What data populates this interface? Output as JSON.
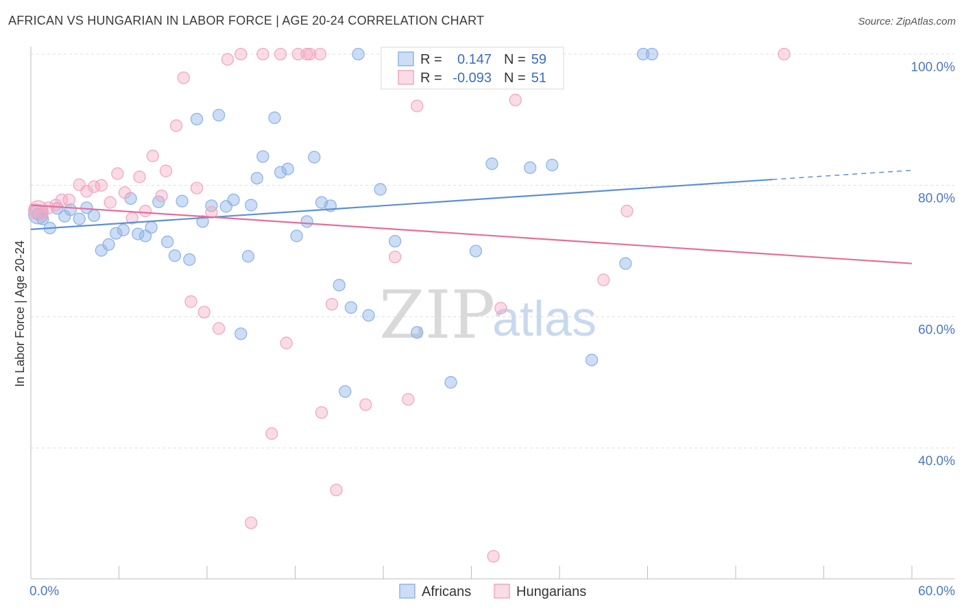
{
  "header": {
    "title": "AFRICAN VS HUNGARIAN IN LABOR FORCE | AGE 20-24 CORRELATION CHART",
    "source": "Source: ZipAtlas.com"
  },
  "watermark": {
    "zip": "ZIP",
    "atlas": "atlas"
  },
  "legend_top": {
    "rows": [
      {
        "r_label": "R =",
        "r_value": "0.147",
        "n_label": "N =",
        "n_value": "59",
        "color": "#8fb4e8"
      },
      {
        "r_label": "R =",
        "r_value": "-0.093",
        "n_label": "N =",
        "n_value": "51",
        "color": "#f3a7c0"
      }
    ]
  },
  "legend_bottom": [
    {
      "label": "Africans",
      "color": "#8fb4e8"
    },
    {
      "label": "Hungarians",
      "color": "#f3a7c0"
    }
  ],
  "chart_data": {
    "type": "scatter",
    "title": "AFRICAN VS HUNGARIAN IN LABOR FORCE | AGE 20-24 CORRELATION CHART",
    "xlabel": "",
    "ylabel": "In Labor Force | Age 20-24",
    "xlim": [
      0,
      60
    ],
    "ylim": [
      20,
      100
    ],
    "x_tick_labels": [
      "0.0%",
      "60.0%"
    ],
    "y_tick_labels": [
      "40.0%",
      "60.0%",
      "80.0%",
      "100.0%"
    ],
    "y_ticks": [
      40,
      60,
      80,
      100
    ],
    "grid": true,
    "series": [
      {
        "name": "Africans",
        "color": "#5b8fd6",
        "fill": "rgba(143,180,232,0.45)",
        "trend": {
          "x0": 0,
          "y0": 73.3,
          "x1": 50.5,
          "y1": 80.9,
          "dash_to_x": 60,
          "dash_to_y": 82.3
        },
        "points": [
          [
            0.5,
            75.6
          ],
          [
            1.3,
            73.5
          ],
          [
            1.8,
            76.5
          ],
          [
            2.3,
            75.3
          ],
          [
            2.7,
            76.3
          ],
          [
            3.3,
            74.9
          ],
          [
            3.8,
            76.6
          ],
          [
            4.3,
            75.4
          ],
          [
            4.8,
            70.1
          ],
          [
            5.3,
            71.0
          ],
          [
            5.8,
            72.7
          ],
          [
            6.3,
            73.2
          ],
          [
            6.8,
            78.0
          ],
          [
            7.3,
            72.6
          ],
          [
            7.8,
            72.3
          ],
          [
            8.2,
            73.6
          ],
          [
            8.7,
            77.5
          ],
          [
            9.3,
            71.4
          ],
          [
            9.8,
            69.3
          ],
          [
            10.3,
            77.6
          ],
          [
            10.8,
            68.7
          ],
          [
            11.3,
            90.1
          ],
          [
            11.7,
            74.5
          ],
          [
            12.3,
            76.9
          ],
          [
            12.8,
            90.7
          ],
          [
            13.3,
            76.8
          ],
          [
            13.8,
            77.8
          ],
          [
            14.3,
            57.4
          ],
          [
            14.8,
            69.2
          ],
          [
            15.4,
            81.1
          ],
          [
            15.8,
            84.4
          ],
          [
            16.6,
            90.3
          ],
          [
            17.0,
            82.0
          ],
          [
            17.5,
            82.5
          ],
          [
            18.1,
            72.3
          ],
          [
            18.8,
            74.5
          ],
          [
            19.3,
            84.3
          ],
          [
            19.8,
            77.4
          ],
          [
            20.4,
            76.9
          ],
          [
            21.0,
            64.8
          ],
          [
            21.4,
            48.6
          ],
          [
            21.8,
            61.4
          ],
          [
            22.3,
            100
          ],
          [
            23.0,
            60.2
          ],
          [
            23.8,
            79.4
          ],
          [
            24.8,
            71.5
          ],
          [
            25.2,
            100
          ],
          [
            26.3,
            57.6
          ],
          [
            28.6,
            50.0
          ],
          [
            30.3,
            70.0
          ],
          [
            31.4,
            83.3
          ],
          [
            34.0,
            82.7
          ],
          [
            35.5,
            83.1
          ],
          [
            38.2,
            53.4
          ],
          [
            40.5,
            68.1
          ],
          [
            41.7,
            100
          ],
          [
            42.3,
            100
          ],
          [
            0.8,
            74.9
          ],
          [
            15.0,
            77.0
          ]
        ]
      },
      {
        "name": "Hungarians",
        "color": "#e86c97",
        "fill": "rgba(243,167,192,0.40)",
        "trend": {
          "x0": 0,
          "y0": 77.0,
          "x1": 60,
          "y1": 68.1
        },
        "points": [
          [
            0.3,
            76.3
          ],
          [
            0.8,
            75.8
          ],
          [
            1.2,
            76.6
          ],
          [
            1.7,
            77.0
          ],
          [
            2.1,
            77.8
          ],
          [
            2.6,
            77.8
          ],
          [
            3.3,
            80.1
          ],
          [
            3.8,
            79.1
          ],
          [
            4.3,
            79.8
          ],
          [
            4.8,
            80.0
          ],
          [
            5.4,
            77.4
          ],
          [
            5.9,
            81.8
          ],
          [
            6.4,
            78.9
          ],
          [
            6.9,
            75.0
          ],
          [
            7.4,
            81.3
          ],
          [
            7.8,
            76.1
          ],
          [
            8.3,
            84.5
          ],
          [
            8.9,
            78.4
          ],
          [
            9.2,
            82.2
          ],
          [
            9.9,
            89.1
          ],
          [
            10.4,
            96.4
          ],
          [
            10.9,
            62.3
          ],
          [
            11.3,
            79.6
          ],
          [
            11.8,
            60.7
          ],
          [
            12.3,
            75.9
          ],
          [
            12.8,
            58.2
          ],
          [
            13.4,
            99.2
          ],
          [
            14.3,
            100
          ],
          [
            15.0,
            28.6
          ],
          [
            15.8,
            100
          ],
          [
            16.4,
            42.2
          ],
          [
            17.0,
            100
          ],
          [
            17.4,
            56.0
          ],
          [
            18.2,
            100
          ],
          [
            18.8,
            100
          ],
          [
            19.0,
            100
          ],
          [
            19.7,
            100
          ],
          [
            19.8,
            45.4
          ],
          [
            20.5,
            61.9
          ],
          [
            20.8,
            33.6
          ],
          [
            22.8,
            46.6
          ],
          [
            24.8,
            69.1
          ],
          [
            25.7,
            47.4
          ],
          [
            26.3,
            92.1
          ],
          [
            26.8,
            100
          ],
          [
            31.5,
            23.5
          ],
          [
            32.0,
            61.3
          ],
          [
            33.0,
            93.0
          ],
          [
            39.0,
            65.6
          ],
          [
            40.6,
            76.1
          ],
          [
            51.3,
            100
          ]
        ]
      }
    ]
  }
}
